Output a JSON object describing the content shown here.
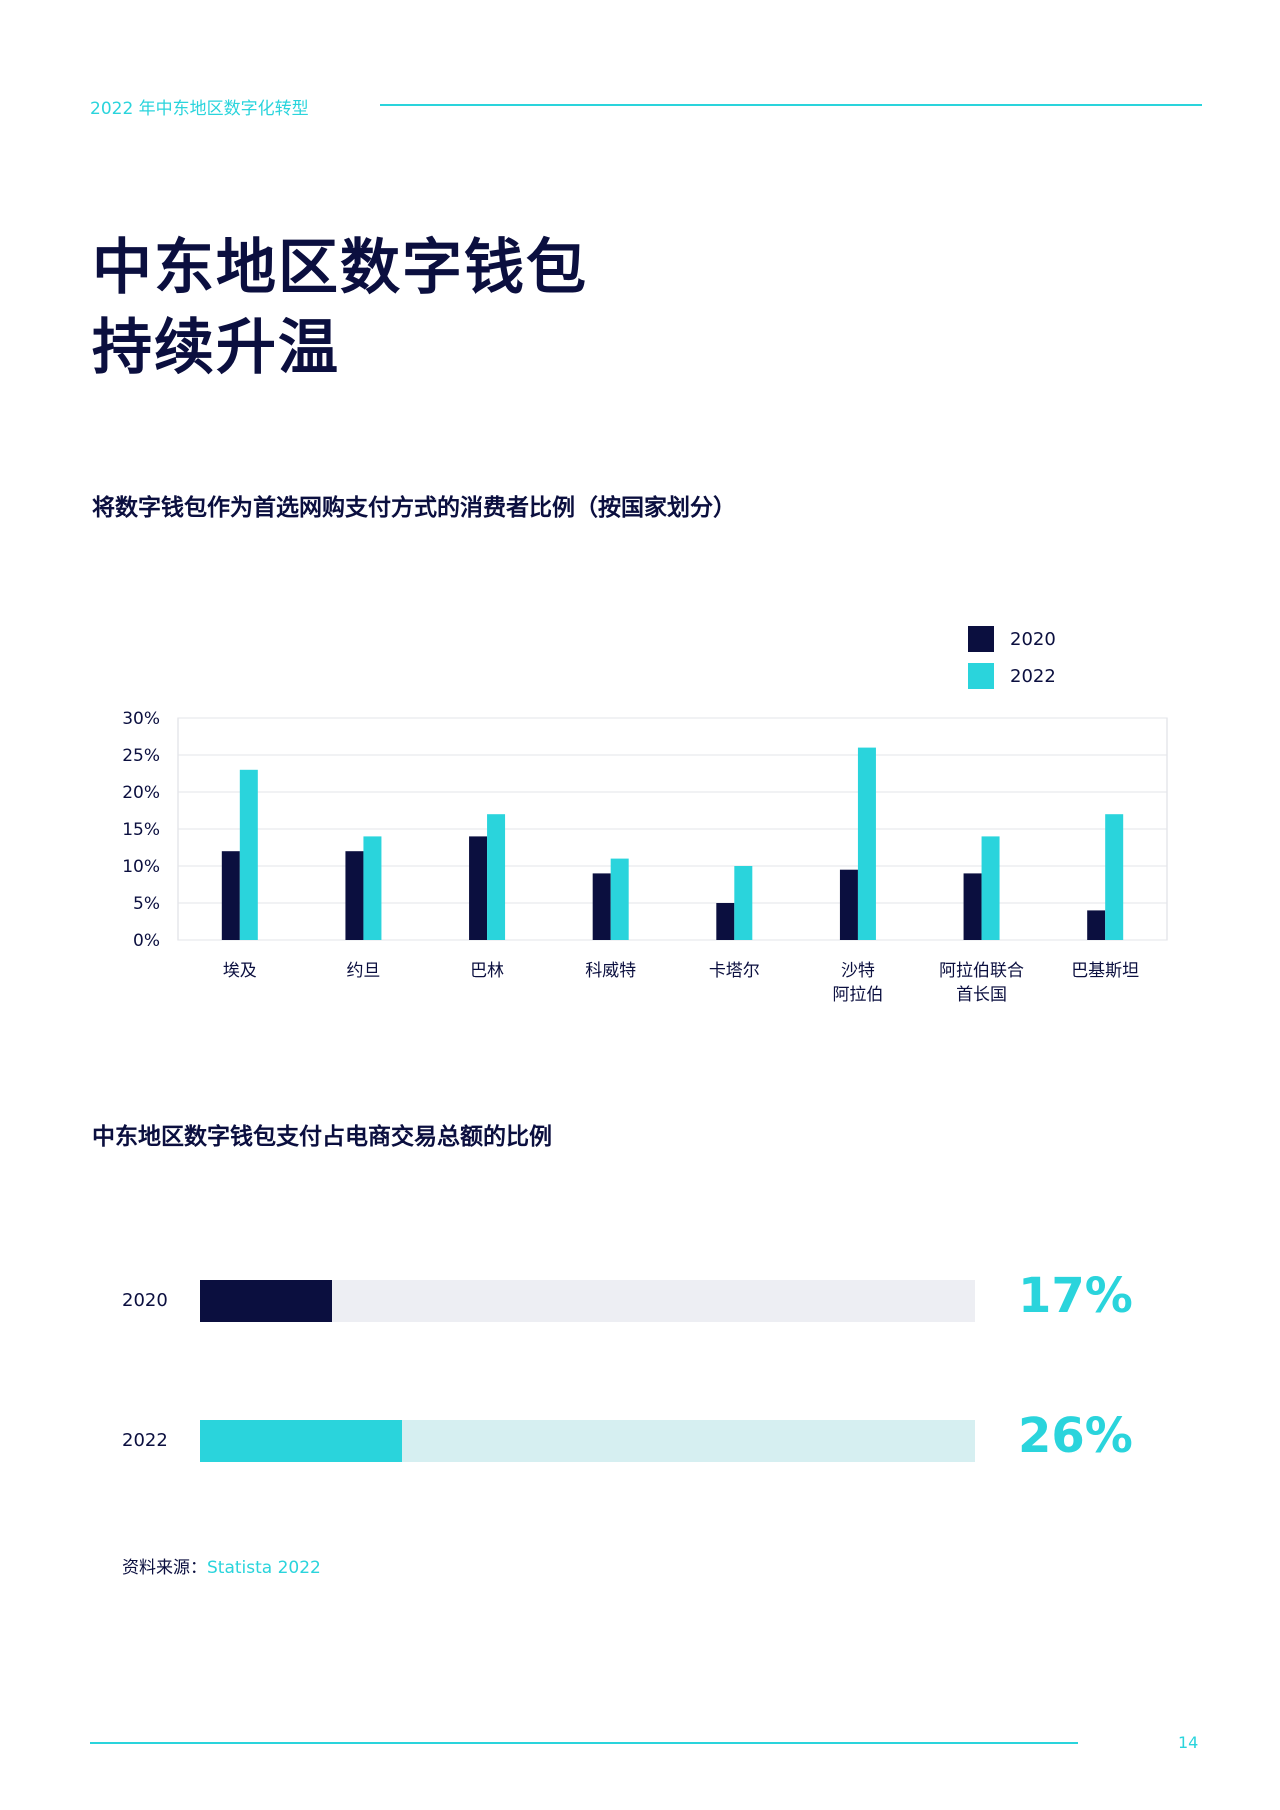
{
  "header": {
    "doc_title": "2022 年中东地区数字化转型"
  },
  "page": {
    "title_line1": "中东地区数字钱包",
    "title_line2": "持续升温",
    "page_number": "14"
  },
  "colors": {
    "accent": "#2ad4dc",
    "navy": "#0b0f3f",
    "track_light": "#edeef3",
    "track_teal": "#d6eff1"
  },
  "source": {
    "label": "资料来源：",
    "value": "Statista 2022"
  },
  "chart_data": [
    {
      "type": "bar",
      "title": "将数字钱包作为首选网购支付方式的消费者比例（按国家划分）",
      "categories": [
        [
          "埃及"
        ],
        [
          "约旦"
        ],
        [
          "巴林"
        ],
        [
          "科威特"
        ],
        [
          "卡塔尔"
        ],
        [
          "沙特",
          "阿拉伯"
        ],
        [
          "阿拉伯联合",
          "首长国"
        ],
        [
          "巴基斯坦"
        ]
      ],
      "series": [
        {
          "name": "2020",
          "color": "#0b0f3f",
          "values": [
            12,
            12,
            14,
            9,
            5,
            9.5,
            9,
            4
          ]
        },
        {
          "name": "2022",
          "color": "#2ad4dc",
          "values": [
            23,
            14,
            17,
            11,
            10,
            26,
            14,
            17
          ]
        }
      ],
      "yticks": [
        "0%",
        "5%",
        "10%",
        "15%",
        "20%",
        "25%",
        "30%"
      ],
      "ylim": [
        0,
        30
      ],
      "grid": true,
      "legend": "top-right"
    },
    {
      "type": "bar",
      "orientation": "horizontal",
      "title": "中东地区数字钱包支付占电商交易总额的比例",
      "categories": [
        "2020",
        "2022"
      ],
      "values": [
        17,
        26
      ],
      "labels": [
        "17%",
        "26%"
      ],
      "xlim": [
        0,
        100
      ]
    }
  ]
}
